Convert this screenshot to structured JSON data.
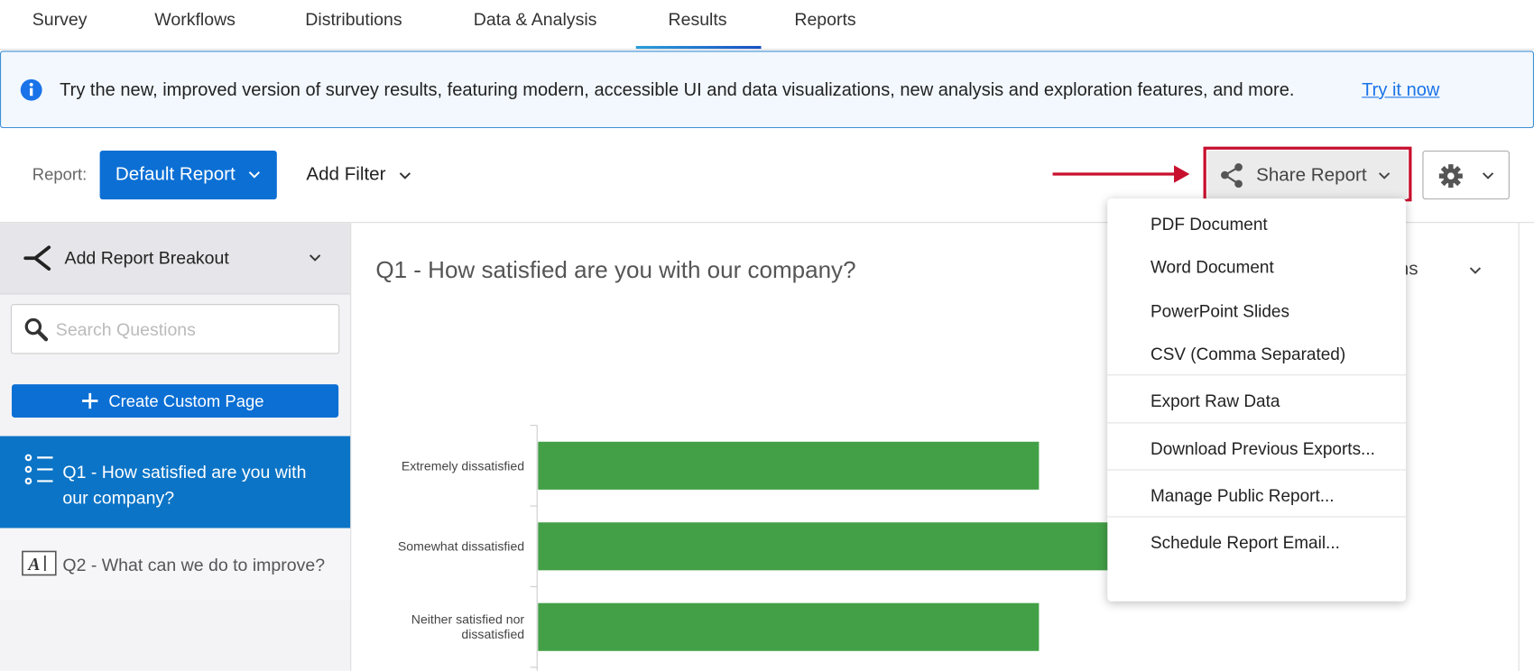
{
  "tabs": [
    "Survey",
    "Workflows",
    "Distributions",
    "Data & Analysis",
    "Results",
    "Reports"
  ],
  "banner": {
    "text": "Try the new, improved version of survey results, featuring modern, accessible UI and data visualizations, new analysis and exploration features, and more.",
    "link": "Try it now"
  },
  "toolbar": {
    "report_label": "Report:",
    "report_button": "Default Report",
    "add_filter": "Add Filter",
    "share_button": "Share Report"
  },
  "sidebar": {
    "breakout": "Add Report Breakout",
    "search_placeholder": "Search Questions",
    "create_page": "Create Custom Page",
    "questions": [
      "Q1 - How satisfied are you with our company?",
      "Q2 - What can we do to improve?"
    ]
  },
  "main": {
    "question_title": "Q1 - How satisfied are you with our company?",
    "options": "Options"
  },
  "menu": {
    "groups": [
      [
        "PDF Document",
        "Word Document",
        "PowerPoint Slides",
        "CSV (Comma Separated)"
      ],
      [
        "Export Raw Data"
      ],
      [
        "Download Previous Exports..."
      ],
      [
        "Manage Public Report..."
      ],
      [
        "Schedule Report Email..."
      ]
    ]
  },
  "chart_data": {
    "type": "bar",
    "orientation": "horizontal",
    "categories": [
      "Extremely dissatisfied",
      "Somewhat dissatisfied",
      "Neither satisfied nor dissatisfied"
    ],
    "values": [
      2,
      3,
      2
    ],
    "color": "#43a047",
    "xlim": [
      0,
      4
    ]
  }
}
